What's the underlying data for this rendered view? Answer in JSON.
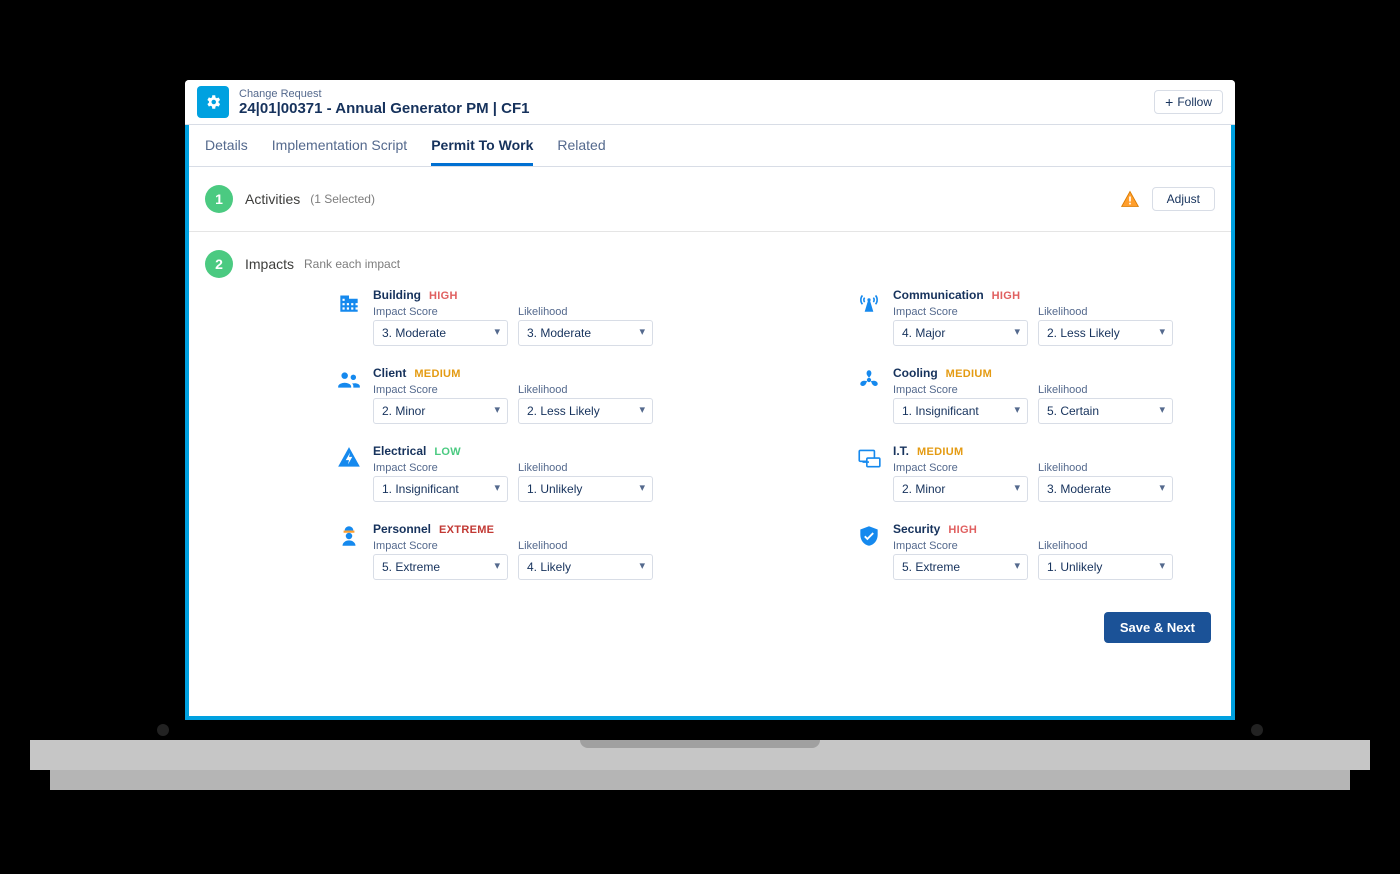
{
  "header": {
    "kicker": "Change Request",
    "title": "24|01|00371 - Annual Generator PM | CF1",
    "follow_label": "Follow",
    "icon_name": "change-request-icon",
    "icon_color": "#00a1e0"
  },
  "tabs": {
    "items": [
      {
        "label": "Details"
      },
      {
        "label": "Implementation Script"
      },
      {
        "label": "Permit To Work"
      },
      {
        "label": "Related"
      }
    ],
    "active_index": 2
  },
  "step1": {
    "number": "1",
    "title": "Activities",
    "subtitle": "(1 Selected)",
    "adjust_label": "Adjust",
    "show_warning": true
  },
  "step2": {
    "number": "2",
    "title": "Impacts",
    "subtitle": "Rank each impact"
  },
  "impact_field_labels": {
    "score": "Impact Score",
    "likelihood": "Likelihood"
  },
  "impacts": {
    "col1": [
      {
        "icon": "building-icon",
        "name": "Building",
        "rating": "HIGH",
        "score": "3. Moderate",
        "likelihood": "3. Moderate"
      },
      {
        "icon": "client-icon",
        "name": "Client",
        "rating": "MEDIUM",
        "score": "2. Minor",
        "likelihood": "2. Less Likely"
      },
      {
        "icon": "electrical-icon",
        "name": "Electrical",
        "rating": "LOW",
        "score": "1. Insignificant",
        "likelihood": "1. Unlikely"
      },
      {
        "icon": "personnel-icon",
        "name": "Personnel",
        "rating": "EXTREME",
        "score": "5. Extreme",
        "likelihood": "4. Likely"
      }
    ],
    "col2": [
      {
        "icon": "communication-icon",
        "name": "Communication",
        "rating": "HIGH",
        "score": "4. Major",
        "likelihood": "2. Less Likely"
      },
      {
        "icon": "cooling-icon",
        "name": "Cooling",
        "rating": "MEDIUM",
        "score": "1. Insignificant",
        "likelihood": "5. Certain"
      },
      {
        "icon": "it-icon",
        "name": "I.T.",
        "rating": "MEDIUM",
        "score": "2. Minor",
        "likelihood": "3. Moderate"
      },
      {
        "icon": "security-icon",
        "name": "Security",
        "rating": "HIGH",
        "score": "5. Extreme",
        "likelihood": "1. Unlikely"
      }
    ]
  },
  "footer": {
    "save_label": "Save & Next"
  },
  "colors": {
    "accent": "#00a1e0",
    "primary_button": "#1b5297",
    "step_badge": "#4bca81"
  }
}
